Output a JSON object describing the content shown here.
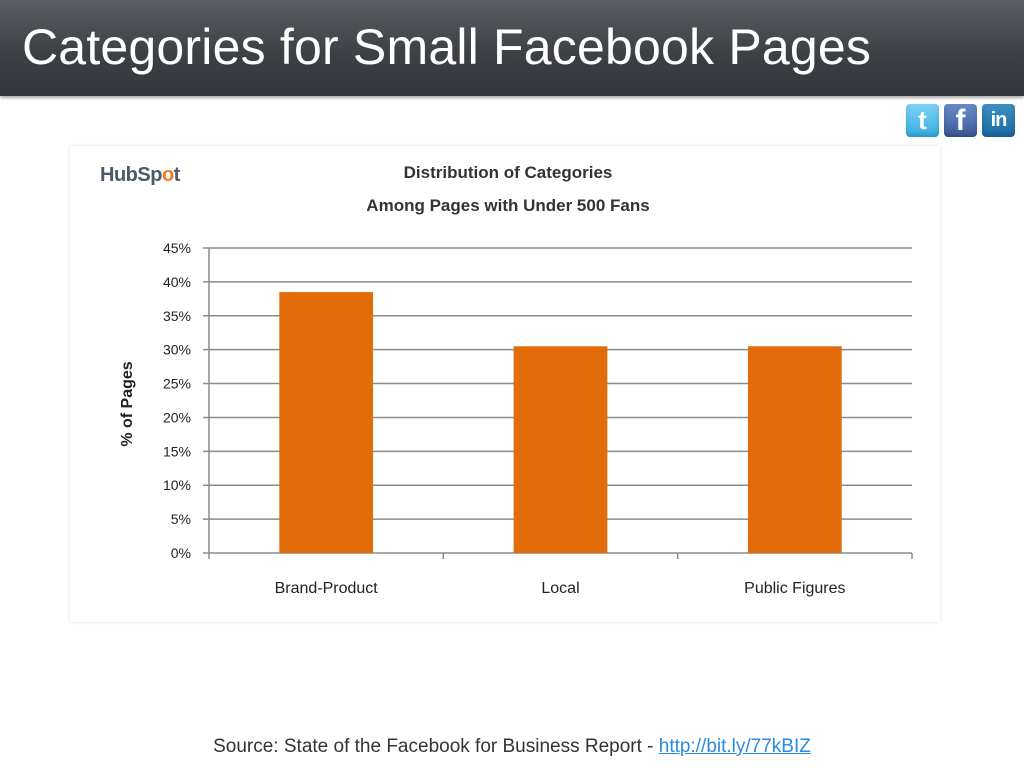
{
  "slide": {
    "title": "Categories for Small Facebook Pages",
    "source_prefix": "Source: State of the Facebook for Business Report - ",
    "source_link": "http://bit.ly/77kBIZ"
  },
  "social": {
    "twitter_glyph": "t",
    "facebook_glyph": "f",
    "linkedin_glyph": "in"
  },
  "logo": {
    "part1": "HubSp",
    "part2": "o",
    "part3": "t"
  },
  "colors": {
    "bar": "#e36c0a",
    "grid": "#8c8c8c",
    "title_bar": "#3d4146"
  },
  "chart_data": {
    "type": "bar",
    "title": "Distribution of Categories",
    "subtitle": "Among Pages with Under 500 Fans",
    "ylabel": "% of Pages",
    "xlabel": "",
    "categories": [
      "Brand-Product",
      "Local",
      "Public Figures"
    ],
    "values": [
      38.5,
      30.5,
      30.5
    ],
    "ylim": [
      0,
      45
    ],
    "yticks": [
      "0%",
      "5%",
      "10%",
      "15%",
      "20%",
      "25%",
      "30%",
      "35%",
      "40%",
      "45%"
    ],
    "grid": true,
    "legend": "none"
  }
}
